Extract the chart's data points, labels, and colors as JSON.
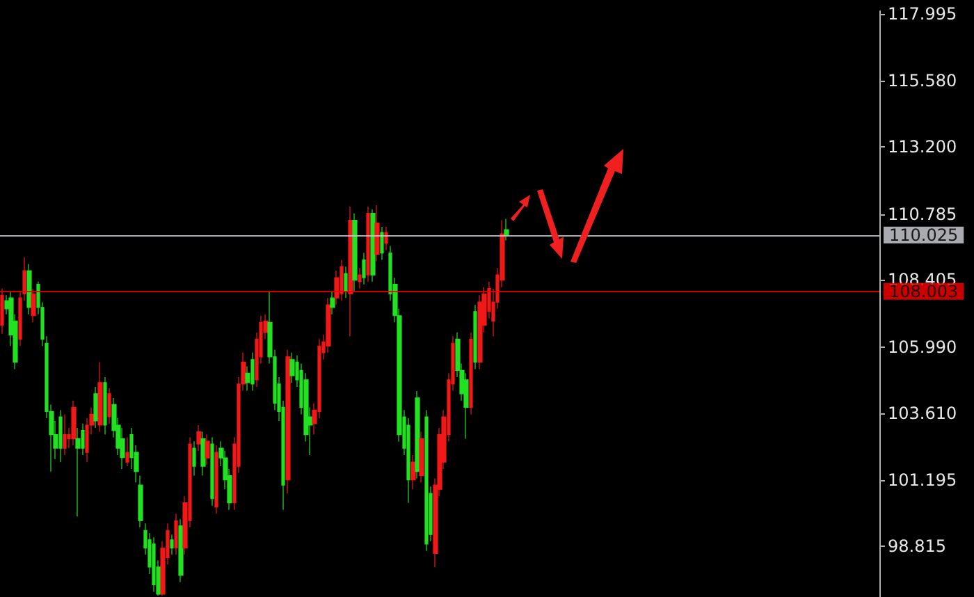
{
  "chart_data": {
    "type": "candlestick",
    "categories": [
      null,
      null,
      null,
      null,
      null,
      null,
      null,
      null,
      null,
      null,
      null,
      null,
      null,
      null,
      null,
      null,
      null,
      null,
      null,
      null,
      null,
      null,
      null,
      null,
      null,
      null,
      null,
      null,
      null,
      null,
      null,
      null,
      null,
      null,
      null,
      null,
      null,
      null,
      null,
      null,
      null,
      null,
      null,
      null,
      null,
      null,
      null,
      null,
      null,
      null,
      null,
      null,
      null,
      null,
      null,
      null,
      null,
      null,
      null,
      null,
      null,
      null,
      null,
      null,
      null,
      null,
      null,
      null,
      null,
      null,
      null,
      null,
      null,
      null,
      null,
      null,
      null,
      null,
      null,
      null,
      null,
      null,
      null,
      null,
      null,
      null,
      null,
      null,
      null,
      null,
      null,
      null,
      null,
      null,
      null,
      null,
      null,
      null,
      null,
      null,
      null,
      null,
      null,
      null,
      null,
      null,
      null,
      null,
      null,
      null,
      null,
      null,
      null,
      null,
      null,
      null,
      null,
      null,
      null,
      null,
      null,
      null,
      null,
      null,
      null,
      null,
      null,
      null,
      null,
      null,
      null,
      null,
      null,
      null,
      null,
      null,
      null,
      null,
      null,
      null,
      null,
      null,
      null,
      null,
      null,
      null,
      null,
      null,
      null,
      null,
      null,
      null,
      null,
      null,
      null,
      null,
      null,
      null,
      null,
      null,
      null,
      null,
      null,
      null,
      null,
      null,
      null,
      null,
      null,
      null,
      null,
      null,
      null,
      null,
      null,
      null,
      null,
      null,
      null,
      null,
      null,
      null,
      null,
      null,
      null,
      null,
      null,
      null,
      null,
      null,
      null,
      null,
      null,
      null,
      null,
      null,
      null
    ],
    "ohlc": [
      [
        106.77,
        108.1,
        106.47,
        107.86
      ],
      [
        107.66,
        107.86,
        107.17,
        107.37
      ],
      [
        107.76,
        108.0,
        106.03,
        106.43
      ],
      [
        106.93,
        107.17,
        105.2,
        105.45
      ],
      [
        106.28,
        108.0,
        106.03,
        107.76
      ],
      [
        107.91,
        109.23,
        107.66,
        108.74
      ],
      [
        108.74,
        108.98,
        107.17,
        107.42
      ],
      [
        107.12,
        108.1,
        106.88,
        107.91
      ],
      [
        108.25,
        108.35,
        107.17,
        107.42
      ],
      [
        107.42,
        107.61,
        106.03,
        106.28
      ],
      [
        106.13,
        106.38,
        103.43,
        103.67
      ],
      [
        103.67,
        103.92,
        101.51,
        102.84
      ],
      [
        102.84,
        103.33,
        101.96,
        102.35
      ],
      [
        103.48,
        103.72,
        101.85,
        102.35
      ],
      [
        102.35,
        103.57,
        102.1,
        102.84
      ],
      [
        102.69,
        103.08,
        102.35,
        102.84
      ],
      [
        102.69,
        104.06,
        102.45,
        103.82
      ],
      [
        102.69,
        103.08,
        99.89,
        102.35
      ],
      [
        102.99,
        103.23,
        102.1,
        102.35
      ],
      [
        102.2,
        103.43,
        101.85,
        103.18
      ],
      [
        103.18,
        103.82,
        102.84,
        103.57
      ],
      [
        104.31,
        104.56,
        103.08,
        103.33
      ],
      [
        103.18,
        105.45,
        102.94,
        104.71
      ],
      [
        104.71,
        104.91,
        102.84,
        103.18
      ],
      [
        103.48,
        104.51,
        103.23,
        104.31
      ],
      [
        103.92,
        104.16,
        102.74,
        102.99
      ],
      [
        103.18,
        103.43,
        102.1,
        102.35
      ],
      [
        102.69,
        103.08,
        101.6,
        102.01
      ],
      [
        101.85,
        102.74,
        101.7,
        102.2
      ],
      [
        102.84,
        103.08,
        101.6,
        102.01
      ],
      [
        102.2,
        102.45,
        101.11,
        101.51
      ],
      [
        101.02,
        101.36,
        99.5,
        99.74
      ],
      [
        99.39,
        99.64,
        98.51,
        98.75
      ],
      [
        99.05,
        99.29,
        97.82,
        98.07
      ],
      [
        98.9,
        99.14,
        97.18,
        97.43
      ],
      [
        98.07,
        98.31,
        97.04,
        97.09
      ],
      [
        97.09,
        99.0,
        97.04,
        98.75
      ],
      [
        98.41,
        99.64,
        98.16,
        99.39
      ],
      [
        99.05,
        99.24,
        98.51,
        98.75
      ],
      [
        98.75,
        99.99,
        98.51,
        99.74
      ],
      [
        99.55,
        99.79,
        97.53,
        97.77
      ],
      [
        98.75,
        100.62,
        98.51,
        100.38
      ],
      [
        99.74,
        102.74,
        99.5,
        102.5
      ],
      [
        102.35,
        102.6,
        101.36,
        101.7
      ],
      [
        102.5,
        103.18,
        102.25,
        102.94
      ],
      [
        102.69,
        102.94,
        101.36,
        101.7
      ],
      [
        102.0,
        102.84,
        101.75,
        102.6
      ],
      [
        102.5,
        102.74,
        100.28,
        100.53
      ],
      [
        100.23,
        102.45,
        99.99,
        102.2
      ],
      [
        102.35,
        102.6,
        101.7,
        102.0
      ],
      [
        102.0,
        102.25,
        100.87,
        101.21
      ],
      [
        101.36,
        101.6,
        100.13,
        100.38
      ],
      [
        100.38,
        102.74,
        100.13,
        102.5
      ],
      [
        101.7,
        104.91,
        101.46,
        104.66
      ],
      [
        104.66,
        105.79,
        104.42,
        105.45
      ],
      [
        105.05,
        105.3,
        104.42,
        104.71
      ],
      [
        105.54,
        105.79,
        104.42,
        104.66
      ],
      [
        104.81,
        106.52,
        104.56,
        106.28
      ],
      [
        105.64,
        107.12,
        105.4,
        106.88
      ],
      [
        106.52,
        107.17,
        106.28,
        106.93
      ],
      [
        106.88,
        108.0,
        105.4,
        105.64
      ],
      [
        105.64,
        105.89,
        103.72,
        103.97
      ],
      [
        104.66,
        104.91,
        103.33,
        103.67
      ],
      [
        103.82,
        104.06,
        100.13,
        101.02
      ],
      [
        101.21,
        105.89,
        100.72,
        105.64
      ],
      [
        105.54,
        105.79,
        104.71,
        104.96
      ],
      [
        105.45,
        105.69,
        104.56,
        104.81
      ],
      [
        105.15,
        105.4,
        103.57,
        103.82
      ],
      [
        104.81,
        105.05,
        102.59,
        102.84
      ],
      [
        103.48,
        103.82,
        102.1,
        103.18
      ],
      [
        103.23,
        103.97,
        102.84,
        103.72
      ],
      [
        103.67,
        106.28,
        103.43,
        106.03
      ],
      [
        105.79,
        106.43,
        105.54,
        106.18
      ],
      [
        106.03,
        107.76,
        105.79,
        107.51
      ],
      [
        107.76,
        108.0,
        107.17,
        107.42
      ],
      [
        107.76,
        108.74,
        107.51,
        108.49
      ],
      [
        107.91,
        109.13,
        107.66,
        108.89
      ],
      [
        108.64,
        108.89,
        107.76,
        108.0
      ],
      [
        107.91,
        111.05,
        106.38,
        110.56
      ],
      [
        110.56,
        110.81,
        108.0,
        108.4
      ],
      [
        108.35,
        108.84,
        108.1,
        108.59
      ],
      [
        109.13,
        109.38,
        108.25,
        108.49
      ],
      [
        108.59,
        111.05,
        108.35,
        110.81
      ],
      [
        110.81,
        110.95,
        108.35,
        108.59
      ],
      [
        109.33,
        111.1,
        109.08,
        110.46
      ],
      [
        110.12,
        110.32,
        109.13,
        109.38
      ],
      [
        109.73,
        110.32,
        109.48,
        110.12
      ],
      [
        109.38,
        109.63,
        107.66,
        107.91
      ],
      [
        108.25,
        108.49,
        106.88,
        107.12
      ],
      [
        107.12,
        107.37,
        102.59,
        102.84
      ],
      [
        103.48,
        103.72,
        102.1,
        102.35
      ],
      [
        103.18,
        103.43,
        100.38,
        101.21
      ],
      [
        101.21,
        102.1,
        100.87,
        101.85
      ],
      [
        104.16,
        104.41,
        101.26,
        101.51
      ],
      [
        101.36,
        102.94,
        101.11,
        102.69
      ],
      [
        103.48,
        103.72,
        98.65,
        98.9
      ],
      [
        100.72,
        100.97,
        99.0,
        99.24
      ],
      [
        98.56,
        101.26,
        98.07,
        101.02
      ],
      [
        100.87,
        103.08,
        100.62,
        102.84
      ],
      [
        101.85,
        103.72,
        101.6,
        103.48
      ],
      [
        102.84,
        105.05,
        102.59,
        104.81
      ],
      [
        104.66,
        106.38,
        104.42,
        106.13
      ],
      [
        106.28,
        106.52,
        104.91,
        105.15
      ],
      [
        105.15,
        105.4,
        104.06,
        104.31
      ],
      [
        104.81,
        105.05,
        102.69,
        103.82
      ],
      [
        103.82,
        106.52,
        103.57,
        106.28
      ],
      [
        107.27,
        107.51,
        105.2,
        105.45
      ],
      [
        105.45,
        107.86,
        105.2,
        107.61
      ],
      [
        106.77,
        108.15,
        106.52,
        107.91
      ],
      [
        107.27,
        108.35,
        107.02,
        108.1
      ],
      [
        106.93,
        108.1,
        106.38,
        107.61
      ],
      [
        107.61,
        108.84,
        107.37,
        108.59
      ],
      [
        108.4,
        110.56,
        108.15,
        110.07
      ],
      [
        110.22,
        110.61,
        109.83,
        110.025
      ],
      null,
      null,
      null,
      null,
      null,
      null,
      null,
      null,
      null,
      null,
      null,
      null,
      null,
      null,
      null,
      null,
      null,
      null,
      null,
      null,
      null,
      null,
      null,
      null,
      null,
      null,
      null,
      null,
      null,
      null,
      null,
      null,
      null,
      null,
      null,
      null,
      null,
      null,
      null,
      null,
      null,
      null,
      null,
      null,
      null,
      null,
      null,
      null,
      null,
      null,
      null,
      null,
      null,
      null,
      null,
      null,
      null,
      null,
      null,
      null,
      null,
      null,
      null,
      null,
      null,
      null,
      null,
      null,
      null,
      null,
      null,
      null,
      null,
      null,
      null,
      null,
      null,
      null,
      null,
      null,
      null,
      null,
      null
    ],
    "colors": [
      "#f01818",
      "#22e022",
      "#22e022",
      "#22e022",
      "#f01818",
      "#f01818",
      "#22e022",
      "#f01818",
      "#22e022",
      "#22e022",
      "#22e022",
      "#22e022",
      "#22e022",
      "#22e022",
      "#f01818",
      "#f01818",
      "#f01818",
      "#22e022",
      "#22e022",
      "#f01818",
      "#f01818",
      "#22e022",
      "#f01818",
      "#22e022",
      "#f01818",
      "#22e022",
      "#22e022",
      "#22e022",
      "#f01818",
      "#22e022",
      "#22e022",
      "#22e022",
      "#22e022",
      "#22e022",
      "#22e022",
      "#22e022",
      "#f01818",
      "#f01818",
      "#22e022",
      "#f01818",
      "#22e022",
      "#f01818",
      "#f01818",
      "#22e022",
      "#f01818",
      "#22e022",
      "#f01818",
      "#22e022",
      "#f01818",
      "#22e022",
      "#22e022",
      "#22e022",
      "#f01818",
      "#f01818",
      "#f01818",
      "#22e022",
      "#22e022",
      "#f01818",
      "#f01818",
      "#f01818",
      "#22e022",
      "#22e022",
      "#22e022",
      "#22e022",
      "#f01818",
      "#22e022",
      "#22e022",
      "#22e022",
      "#22e022",
      "#22e022",
      "#f01818",
      "#f01818",
      "#f01818",
      "#f01818",
      "#22e022",
      "#f01818",
      "#f01818",
      "#22e022",
      "#f01818",
      "#22e022",
      "#f01818",
      "#22e022",
      "#f01818",
      "#22e022",
      "#f01818",
      "#22e022",
      "#f01818",
      "#22e022",
      "#22e022",
      "#22e022",
      "#22e022",
      "#22e022",
      "#f01818",
      "#22e022",
      "#f01818",
      "#22e022",
      "#22e022",
      "#f01818",
      "#f01818",
      "#f01818",
      "#f01818",
      "#f01818",
      "#22e022",
      "#22e022",
      "#22e022",
      "#f01818",
      "#22e022",
      "#f01818",
      "#f01818",
      "#f01818",
      "#f01818",
      "#f01818",
      "#f01818",
      "#22e022",
      null,
      null,
      null,
      null,
      null,
      null,
      null,
      null,
      null,
      null,
      null,
      null,
      null,
      null,
      null,
      null,
      null,
      null,
      null,
      null,
      null,
      null,
      null,
      null,
      null,
      null,
      null,
      null,
      null,
      null,
      null,
      null,
      null,
      null,
      null,
      null,
      null,
      null,
      null,
      null,
      null,
      null,
      null,
      null,
      null,
      null,
      null,
      null,
      null,
      null,
      null,
      null,
      null,
      null,
      null,
      null,
      null,
      null,
      null,
      null,
      null,
      null,
      null,
      null,
      null,
      null,
      null,
      null,
      null,
      null,
      null,
      null,
      null,
      null,
      null,
      null,
      null,
      null,
      null,
      null,
      null,
      null,
      null
    ],
    "ylim": [
      96.99,
      118.09
    ],
    "yticks": [
      98.815,
      101.195,
      {
        "value": 103.61,
        "label": "103.610"
      },
      {
        "value": 105.99,
        "label": "105.990"
      },
      108.405,
      110.785,
      {
        "value": 113.2,
        "label": "113.200"
      },
      {
        "value": 115.58,
        "label": "115.580"
      },
      117.995
    ],
    "ref_lines": [
      {
        "axis": "y",
        "value": 110.025,
        "label": "110.025",
        "color": "#c8c8d0"
      },
      {
        "axis": "y",
        "value": 108.003,
        "label": "108.003",
        "color": "#ee0000"
      }
    ],
    "tick_labels": "y"
  }
}
